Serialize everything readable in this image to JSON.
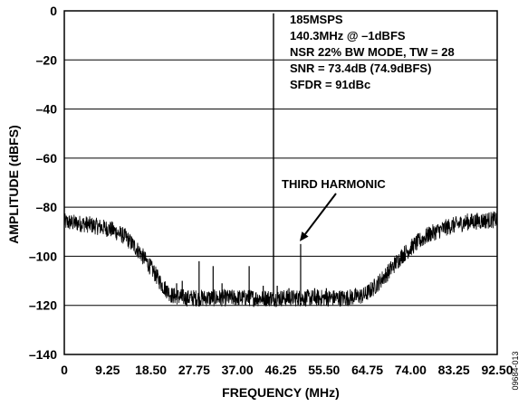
{
  "chart_data": {
    "type": "line",
    "xlabel": "FREQUENCY (MHz)",
    "ylabel": "AMPLITUDE (dBFS)",
    "xlim": [
      0,
      92.5
    ],
    "ylim": [
      -140,
      0
    ],
    "x_ticks": [
      "0",
      "9.25",
      "18.50",
      "27.75",
      "37.00",
      "46.25",
      "55.50",
      "64.75",
      "74.00",
      "83.25",
      "92.50"
    ],
    "y_ticks": [
      "0",
      "–20",
      "–40",
      "–60",
      "–80",
      "–100",
      "–120",
      "–140"
    ],
    "grid": true,
    "info_lines": [
      "185MSPS",
      "140.3MHz @ –1dBFS",
      "NSR 22% BW MODE, TW = 28",
      "SNR = 73.4dB (74.9dBFS)",
      "SFDR = 91dBc"
    ],
    "annotation": {
      "text": "THIRD HARMONIC",
      "points_to": {
        "x": 50.5,
        "y": -95
      }
    },
    "figure_id": "09684-013",
    "noise_floor": [
      {
        "x": 0,
        "y": -86
      },
      {
        "x": 5,
        "y": -87
      },
      {
        "x": 10,
        "y": -89
      },
      {
        "x": 13,
        "y": -92
      },
      {
        "x": 16,
        "y": -98
      },
      {
        "x": 19,
        "y": -106
      },
      {
        "x": 21,
        "y": -112
      },
      {
        "x": 23,
        "y": -116
      },
      {
        "x": 26,
        "y": -117
      },
      {
        "x": 30,
        "y": -117
      },
      {
        "x": 40,
        "y": -117
      },
      {
        "x": 50,
        "y": -117
      },
      {
        "x": 60,
        "y": -117
      },
      {
        "x": 64,
        "y": -116
      },
      {
        "x": 66,
        "y": -113
      },
      {
        "x": 69,
        "y": -107
      },
      {
        "x": 72,
        "y": -100
      },
      {
        "x": 75,
        "y": -95
      },
      {
        "x": 78,
        "y": -91
      },
      {
        "x": 82,
        "y": -88
      },
      {
        "x": 86,
        "y": -86
      },
      {
        "x": 92.5,
        "y": -85
      }
    ],
    "spurs": [
      {
        "x": 21.9,
        "y": -112
      },
      {
        "x": 24.0,
        "y": -111
      },
      {
        "x": 25.2,
        "y": -110
      },
      {
        "x": 28.8,
        "y": -102
      },
      {
        "x": 31.8,
        "y": -104
      },
      {
        "x": 33.7,
        "y": -111
      },
      {
        "x": 39.5,
        "y": -104
      },
      {
        "x": 42.5,
        "y": -112
      },
      {
        "x": 44.7,
        "y": -1
      },
      {
        "x": 45.5,
        "y": -112
      },
      {
        "x": 48.0,
        "y": -113
      },
      {
        "x": 50.5,
        "y": -95
      },
      {
        "x": 53.5,
        "y": -113
      },
      {
        "x": 56.0,
        "y": -113
      }
    ]
  }
}
